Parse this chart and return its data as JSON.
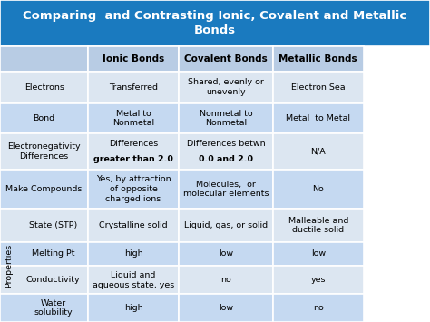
{
  "title": "Comparing  and Contrasting Ionic, Covalent and Metallic\nBonds",
  "title_bg": "#1a7abf",
  "title_color": "#ffffff",
  "header_bg": "#b8cce4",
  "row_bg_light": "#dce6f1",
  "row_bg_dark": "#c5d9f1",
  "headers": [
    "",
    "Ionic Bonds",
    "Covalent Bonds",
    "Metallic Bonds"
  ],
  "rows": [
    {
      "label": "Electrons",
      "ionic": "Transferred",
      "covalent": "Shared, evenly or\nunevenly",
      "metallic": "Electron Sea",
      "bg": "light",
      "prop": false
    },
    {
      "label": "Bond",
      "ionic": "Metal to\nNonmetal",
      "covalent": "Nonmetal to\nNonmetal",
      "metallic": "Metal  to Metal",
      "bg": "dark",
      "prop": false
    },
    {
      "label": "Electronegativity\nDifferences",
      "ionic": "Differences\ngreater than 2.0",
      "covalent": "Differences betwn\n0.0 and 2.0",
      "metallic": "N/A",
      "bg": "light",
      "prop": false
    },
    {
      "label": "Make Compounds",
      "ionic": "Yes, by attraction\nof opposite\ncharged ions",
      "covalent": "Molecules,  or\nmolecular elements",
      "metallic": "No",
      "bg": "dark",
      "prop": false
    },
    {
      "label": "State (STP)",
      "ionic": "Crystalline solid",
      "covalent": "Liquid, gas, or solid",
      "metallic": "Malleable and\nductile solid",
      "bg": "light",
      "prop": true
    },
    {
      "label": "Melting Pt",
      "ionic": "high",
      "covalent": "low",
      "metallic": "low",
      "bg": "dark",
      "prop": true
    },
    {
      "label": "Conductivity",
      "ionic": "Liquid and\naqueous state, yes",
      "covalent": "no",
      "metallic": "yes",
      "bg": "light",
      "prop": true
    },
    {
      "label": "Water\nsolubility",
      "ionic": "high",
      "covalent": "low",
      "metallic": "no",
      "bg": "dark",
      "prop": true
    }
  ],
  "figsize": [
    4.74,
    3.55
  ],
  "dpi": 100
}
